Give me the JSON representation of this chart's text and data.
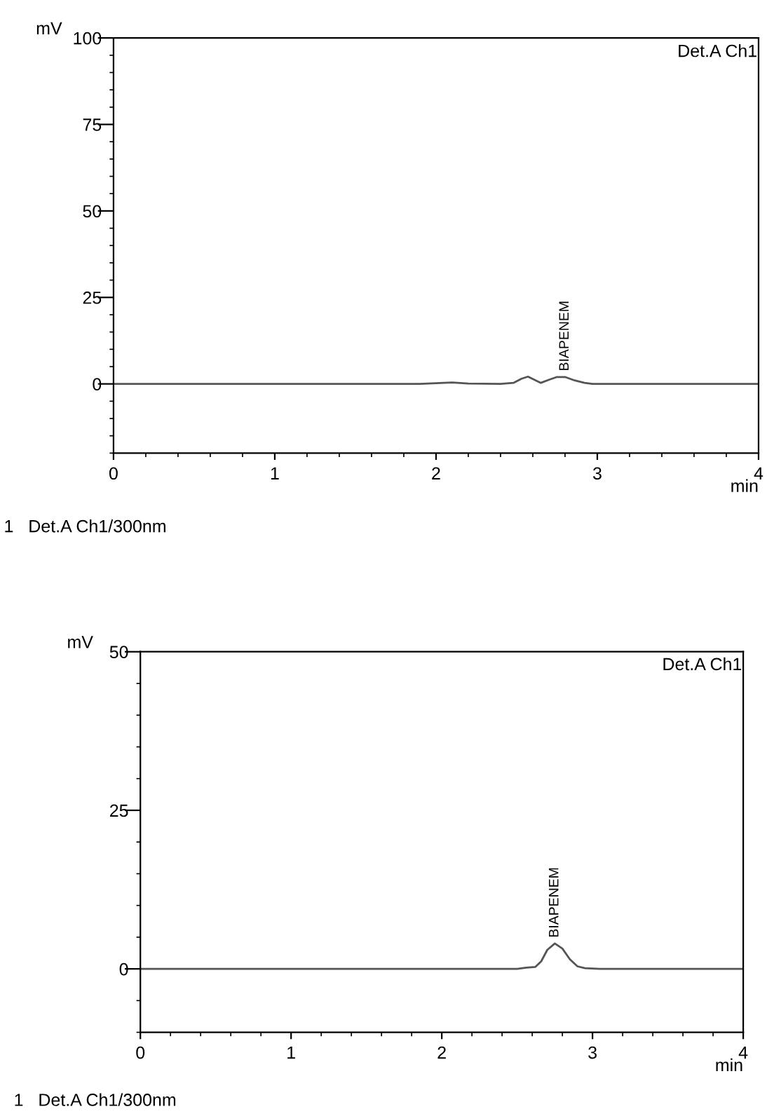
{
  "chart_data": [
    {
      "type": "line",
      "xlabel": "min",
      "ylabel": "mV",
      "xlim": [
        0,
        4
      ],
      "ylim": [
        -20,
        100
      ],
      "xticks": [
        0,
        1,
        2,
        3,
        4
      ],
      "yticks": [
        0,
        25,
        50,
        75,
        100
      ],
      "grid": false,
      "legend": false,
      "series": [
        {
          "color": "#555555",
          "x": [
            0,
            1.0,
            1.9,
            2.05,
            2.1,
            2.2,
            2.4,
            2.48,
            2.53,
            2.57,
            2.61,
            2.65,
            2.7,
            2.75,
            2.8,
            2.86,
            2.92,
            2.97,
            3.1,
            4
          ],
          "values": [
            0,
            0,
            0,
            0.3,
            0.4,
            0.1,
            0,
            0.3,
            1.5,
            2.1,
            1.2,
            0.3,
            1.2,
            2.0,
            2.0,
            1.0,
            0.3,
            0,
            0,
            0
          ]
        }
      ],
      "annotations": [
        {
          "text": "BIAPENEM",
          "x": 2.8,
          "y": 2.0
        },
        "Det.A Ch1",
        "1   Det.A Ch1/300nm"
      ]
    },
    {
      "type": "line",
      "xlabel": "min",
      "ylabel": "mV",
      "xlim": [
        0,
        4
      ],
      "ylim": [
        -10,
        50
      ],
      "xticks": [
        0,
        1,
        2,
        3,
        4
      ],
      "yticks": [
        0,
        25,
        50
      ],
      "grid": false,
      "legend": false,
      "series": [
        {
          "color": "#555555",
          "x": [
            0,
            1.0,
            2.0,
            2.5,
            2.56,
            2.62,
            2.66,
            2.7,
            2.75,
            2.8,
            2.85,
            2.9,
            2.95,
            3.05,
            4
          ],
          "values": [
            0,
            0,
            0,
            0,
            0.2,
            0.3,
            1.2,
            3.0,
            4.0,
            3.2,
            1.5,
            0.4,
            0.1,
            0,
            0
          ]
        }
      ],
      "annotations": [
        {
          "text": "BIAPENEM",
          "x": 2.75,
          "y": 4.0
        },
        "Det.A Ch1",
        "1   Det.A Ch1/300nm"
      ]
    }
  ]
}
